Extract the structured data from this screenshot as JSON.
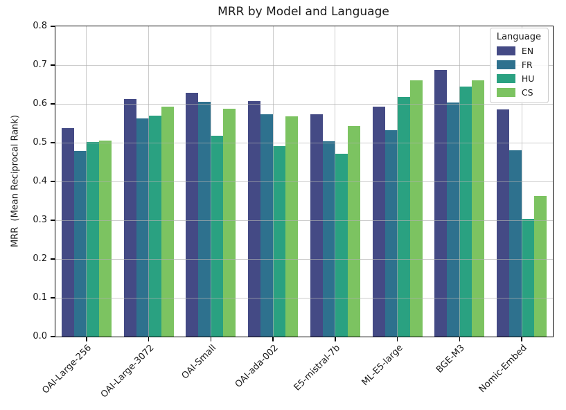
{
  "title": "MRR by Model and Language",
  "ylabel": "MRR  (Mean Reciprocal Rank)",
  "legend": {
    "title": "Language"
  },
  "chart_data": {
    "type": "bar",
    "title": "MRR by Model and Language",
    "xlabel": "",
    "ylabel": "MRR  (Mean Reciprocal Rank)",
    "categories": [
      "OAI-Large-256",
      "OAI-Large-3072",
      "OAI-Small",
      "OAI-ada-002",
      "E5-mistral-7b",
      "ML-E5-large",
      "BGE-M3",
      "Nomic-Embed"
    ],
    "series": [
      {
        "name": "EN",
        "color": "#444a85",
        "values": [
          0.538,
          0.612,
          0.629,
          0.607,
          0.574,
          0.593,
          0.687,
          0.585
        ]
      },
      {
        "name": "FR",
        "color": "#2e718e",
        "values": [
          0.478,
          0.562,
          0.606,
          0.573,
          0.503,
          0.533,
          0.603,
          0.481
        ]
      },
      {
        "name": "HU",
        "color": "#2aa181",
        "values": [
          0.501,
          0.57,
          0.517,
          0.491,
          0.472,
          0.617,
          0.644,
          0.304
        ]
      },
      {
        "name": "CS",
        "color": "#7cc361",
        "values": [
          0.505,
          0.593,
          0.588,
          0.568,
          0.543,
          0.66,
          0.66,
          0.363
        ]
      }
    ],
    "ylim": [
      0.0,
      0.8
    ],
    "yticks": [
      "0.0",
      "0.1",
      "0.2",
      "0.3",
      "0.4",
      "0.5",
      "0.6",
      "0.7",
      "0.8"
    ],
    "grid": true,
    "legend_title": "Language",
    "legend_position": "upper right"
  }
}
